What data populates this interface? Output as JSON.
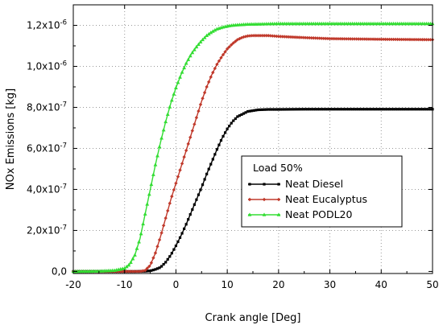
{
  "chart_data": {
    "type": "line",
    "title": "",
    "xlabel": "Crank angle [Deg]",
    "ylabel": "NOx Emissions [kg]",
    "xlim": [
      -20,
      50
    ],
    "ylim": [
      -1e-08,
      1.3e-06
    ],
    "x_ticks": [
      -20,
      -10,
      0,
      10,
      20,
      30,
      40,
      50
    ],
    "x_tick_labels": [
      "-20",
      "-10",
      "0",
      "10",
      "20",
      "30",
      "40",
      "50"
    ],
    "y_ticks": [
      0,
      2e-07,
      4e-07,
      6e-07,
      8e-07,
      1e-06,
      1.2e-06
    ],
    "y_tick_mantissas": [
      "0,0",
      "2,0x10",
      "4,0x10",
      "6,0x10",
      "8,0x10",
      "1,0x10",
      "1,2x10"
    ],
    "y_tick_exponents": [
      "",
      "-7",
      "-7",
      "-7",
      "-7",
      "-6",
      "-6"
    ],
    "grid": true,
    "legend": {
      "title": "Load 50%",
      "placement": "lower-right"
    },
    "series": [
      {
        "name": "Neat Diesel",
        "color": "#000000",
        "marker": "square",
        "x": [
          -20,
          -10,
          -8,
          -6,
          -5,
          -4,
          -3,
          -2,
          -1,
          0,
          1,
          2,
          3,
          4,
          5,
          6,
          7,
          8,
          9,
          10,
          11,
          12,
          14,
          16,
          18,
          20,
          25,
          30,
          40,
          50
        ],
        "y": [
          0,
          0,
          0,
          1e-09,
          3e-09,
          1e-08,
          2e-08,
          4.5e-08,
          8e-08,
          1.25e-07,
          1.75e-07,
          2.3e-07,
          2.9e-07,
          3.5e-07,
          4.1e-07,
          4.75e-07,
          5.35e-07,
          5.95e-07,
          6.5e-07,
          6.95e-07,
          7.3e-07,
          7.55e-07,
          7.8e-07,
          7.88e-07,
          7.9e-07,
          7.9e-07,
          7.91e-07,
          7.91e-07,
          7.91e-07,
          7.91e-07
        ]
      },
      {
        "name": "Neat Eucalyptus",
        "color": "#c0392b",
        "marker": "diamond",
        "x": [
          -20,
          -10,
          -7,
          -6,
          -5,
          -4,
          -3,
          -2,
          -1,
          0,
          1,
          2,
          3,
          4,
          5,
          6,
          7,
          8,
          9,
          10,
          11,
          12,
          13,
          14,
          15,
          16,
          17,
          18,
          20,
          25,
          30,
          40,
          50
        ],
        "y": [
          0,
          0,
          0,
          5e-09,
          3e-08,
          9e-08,
          1.7e-07,
          2.6e-07,
          3.5e-07,
          4.3e-07,
          5.1e-07,
          5.9e-07,
          6.7e-07,
          7.5e-07,
          8.3e-07,
          9e-07,
          9.6e-07,
          1.01e-06,
          1.05e-06,
          1.085e-06,
          1.11e-06,
          1.13e-06,
          1.142e-06,
          1.148e-06,
          1.15e-06,
          1.15e-06,
          1.15e-06,
          1.15e-06,
          1.146e-06,
          1.14e-06,
          1.135e-06,
          1.132e-06,
          1.13e-06
        ]
      },
      {
        "name": "Neat PODL20",
        "color": "#33dd33",
        "marker": "triangle",
        "x": [
          -20,
          -15,
          -12,
          -10,
          -9,
          -8,
          -7,
          -6,
          -5,
          -4,
          -3,
          -2,
          -1,
          0,
          1,
          2,
          3,
          4,
          5,
          6,
          7,
          8,
          9,
          10,
          11,
          12,
          14,
          16,
          18,
          20,
          25,
          30,
          40,
          50
        ],
        "y": [
          0,
          1e-09,
          5e-09,
          1.5e-08,
          3.5e-08,
          8e-08,
          1.6e-07,
          2.8e-07,
          4e-07,
          5.2e-07,
          6.3e-07,
          7.3e-07,
          8.2e-07,
          8.95e-07,
          9.6e-07,
          1.015e-06,
          1.06e-06,
          1.095e-06,
          1.125e-06,
          1.15e-06,
          1.168e-06,
          1.182e-06,
          1.19e-06,
          1.196e-06,
          1.2e-06,
          1.202e-06,
          1.205e-06,
          1.206e-06,
          1.207e-06,
          1.208e-06,
          1.208e-06,
          1.208e-06,
          1.208e-06,
          1.208e-06
        ]
      }
    ]
  }
}
